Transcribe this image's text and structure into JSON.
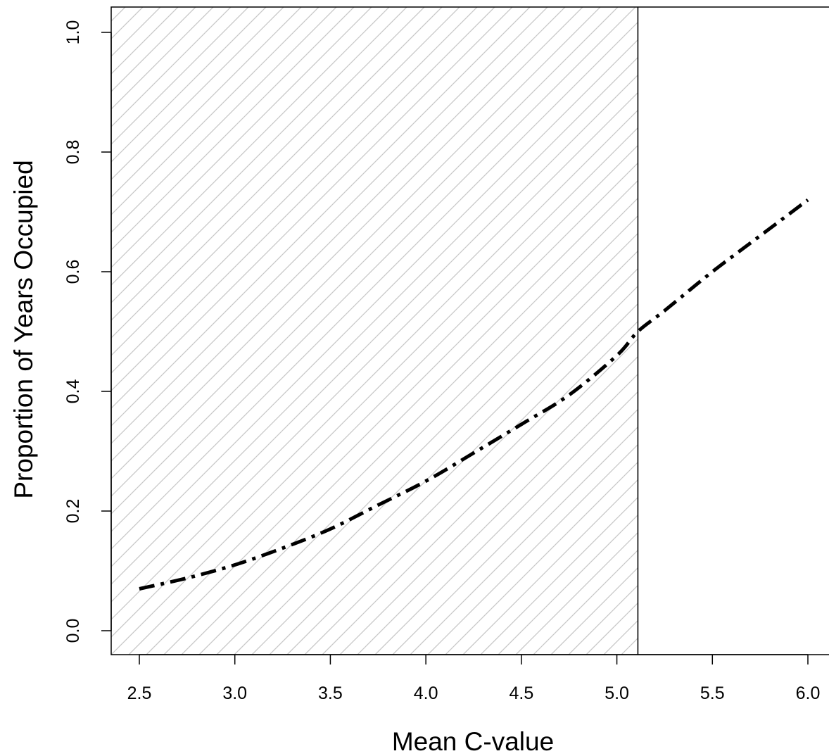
{
  "chart_data": {
    "type": "line",
    "title": "",
    "xlabel": "Mean C-value",
    "ylabel": "Proportion of Years Occupied",
    "xlim": [
      2.35,
      6.15
    ],
    "ylim": [
      -0.04,
      1.04
    ],
    "x_ticks": [
      2.5,
      3.0,
      3.5,
      4.0,
      4.5,
      5.0,
      5.5,
      6.0
    ],
    "x_tick_labels": [
      "2.5",
      "3.0",
      "3.5",
      "4.0",
      "4.5",
      "5.0",
      "5.5",
      "6.0"
    ],
    "y_ticks": [
      0.0,
      0.2,
      0.4,
      0.6,
      0.8,
      1.0
    ],
    "y_tick_labels": [
      "0.0",
      "0.2",
      "0.4",
      "0.6",
      "0.8",
      "1.0"
    ],
    "grid": false,
    "legend": "none",
    "series": [
      {
        "line_style": "dash-dot",
        "color": "#000000",
        "x": [
          2.5,
          2.75,
          3.0,
          3.25,
          3.5,
          3.75,
          4.0,
          4.25,
          4.5,
          4.75,
          5.0,
          5.11,
          5.25,
          5.5,
          5.75,
          6.0
        ],
        "y": [
          0.07,
          0.088,
          0.11,
          0.138,
          0.17,
          0.21,
          0.25,
          0.297,
          0.345,
          0.394,
          0.46,
          0.5,
          0.535,
          0.6,
          0.66,
          0.72
        ]
      }
    ],
    "threshold": {
      "x": 5.11,
      "shaded_region": "x < threshold",
      "shading": "diagonal hatch",
      "hatch_color": "#c8c8c8",
      "line_color": "#000000"
    }
  }
}
